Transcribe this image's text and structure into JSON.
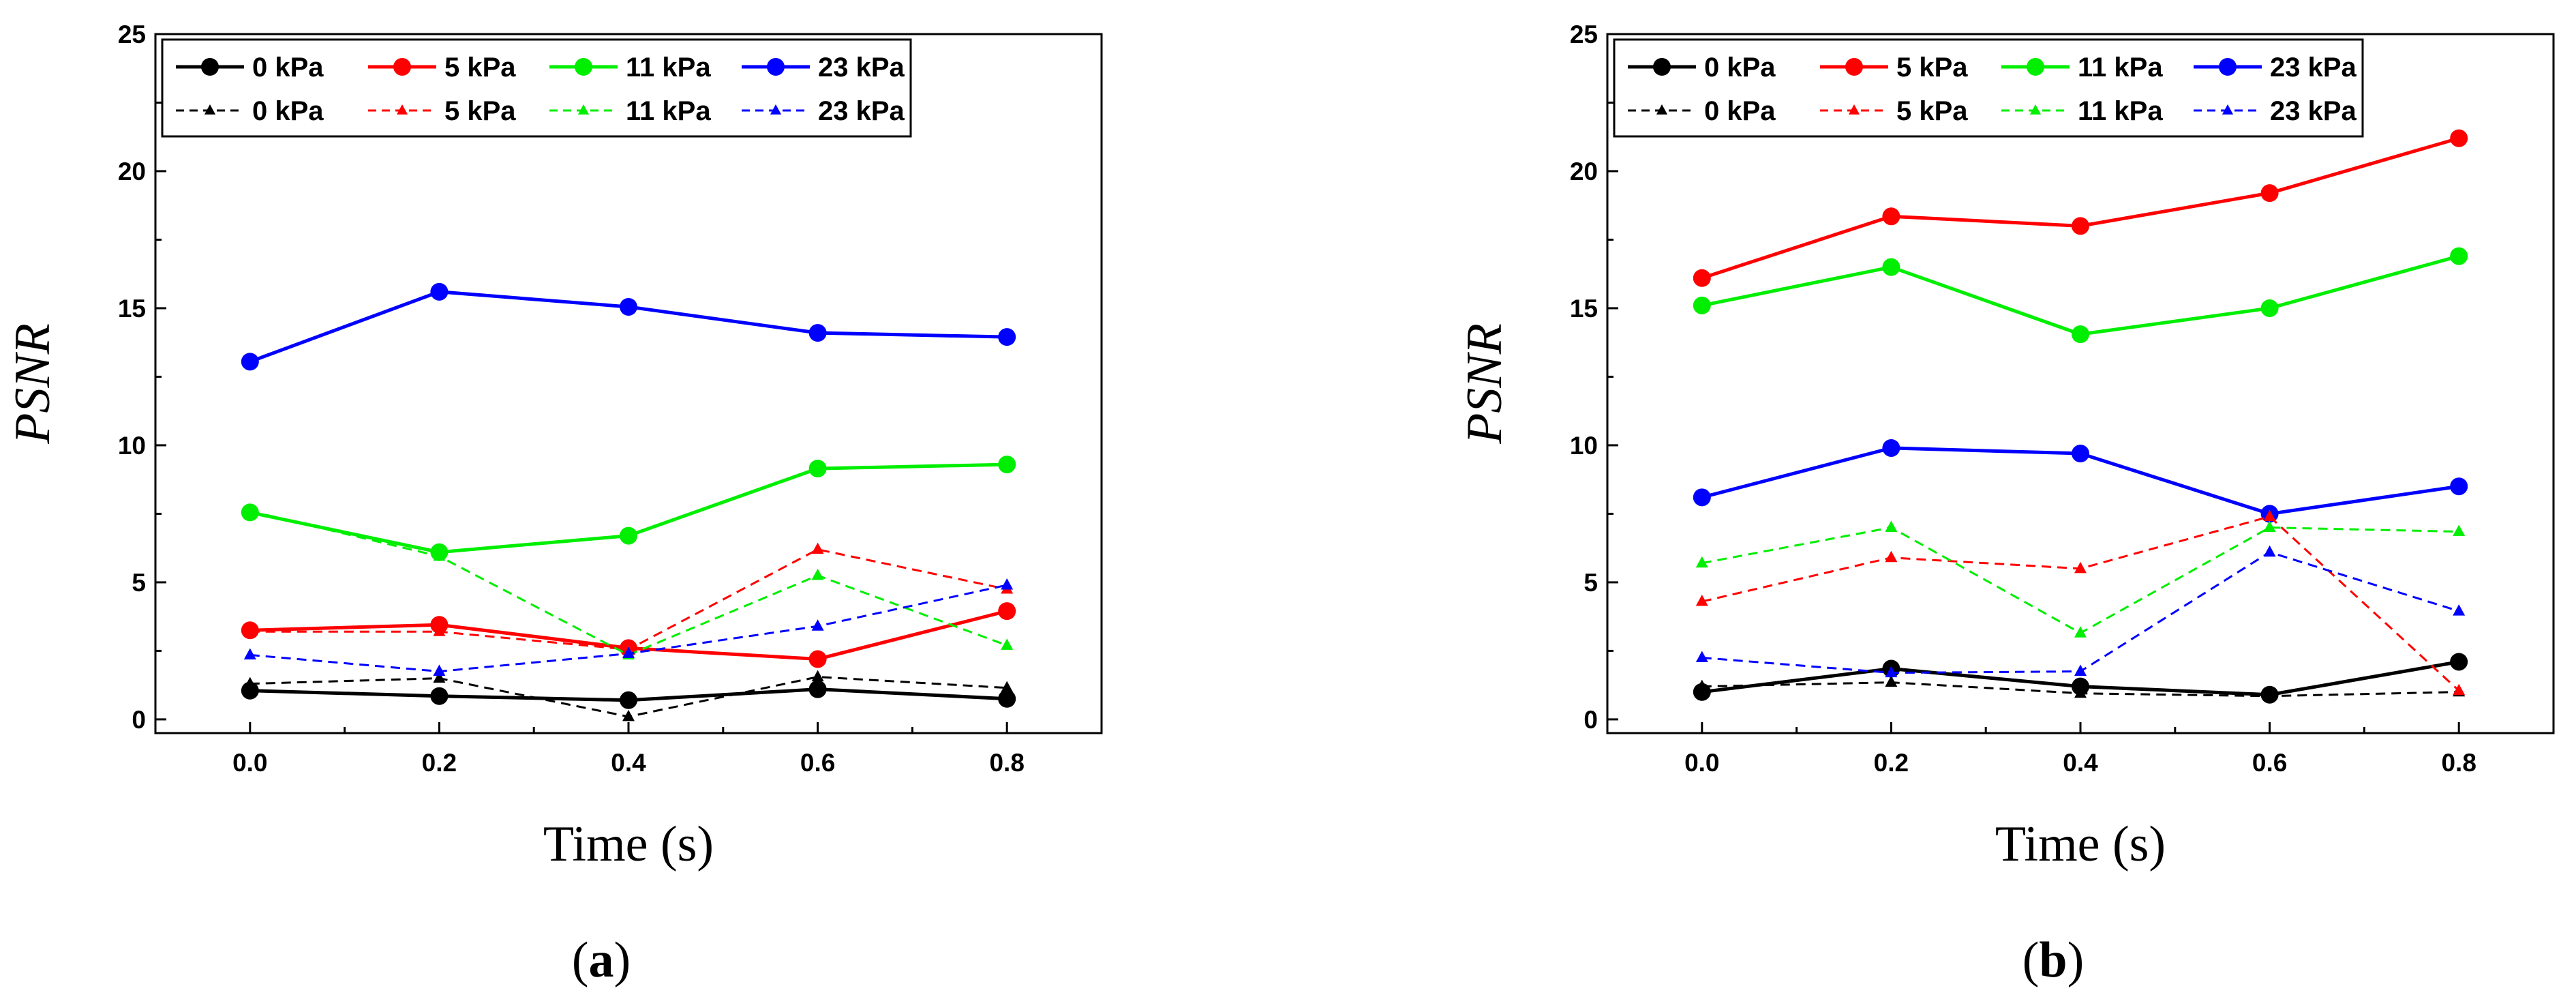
{
  "chart_data": [
    {
      "type": "line",
      "panel_label": {
        "open": "(",
        "letter": "a",
        "close": ")"
      },
      "xlabel": "Time (s)",
      "ylabel": "PSNR",
      "xlim": [
        -0.1,
        0.9
      ],
      "ylim": [
        -0.5,
        25
      ],
      "xticks": [
        0.0,
        0.2,
        0.4,
        0.6,
        0.8
      ],
      "xtick_labels": [
        "0.0",
        "0.2",
        "0.4",
        "0.6",
        "0.8"
      ],
      "yticks": [
        0,
        5,
        10,
        15,
        20,
        25
      ],
      "ytick_labels": [
        "0",
        "5",
        "10",
        "15",
        "20",
        "25"
      ],
      "legend_position": "top-left",
      "x": [
        0.0,
        0.2,
        0.4,
        0.6,
        0.8
      ],
      "series": [
        {
          "name": "0 kPa",
          "style": "solid",
          "color": "#000000",
          "values": [
            1.05,
            0.85,
            0.7,
            1.1,
            0.75
          ]
        },
        {
          "name": "5 kPa",
          "style": "solid",
          "color": "#ff0000",
          "values": [
            3.25,
            3.45,
            2.6,
            2.2,
            3.95
          ]
        },
        {
          "name": "11 kPa",
          "style": "solid",
          "color": "#00ee00",
          "values": [
            7.55,
            6.1,
            6.7,
            9.15,
            9.3
          ]
        },
        {
          "name": "23 kPa",
          "style": "solid",
          "color": "#0000ff",
          "values": [
            13.05,
            15.6,
            15.05,
            14.1,
            13.95
          ]
        },
        {
          "name": "0 kPa",
          "style": "dashed",
          "color": "#000000",
          "values": [
            1.3,
            1.5,
            0.1,
            1.55,
            1.15
          ]
        },
        {
          "name": "5 kPa",
          "style": "dashed",
          "color": "#ff0000",
          "values": [
            3.2,
            3.2,
            2.55,
            6.2,
            4.75
          ]
        },
        {
          "name": "11 kPa",
          "style": "dashed",
          "color": "#00ee00",
          "values": [
            7.6,
            5.95,
            2.35,
            5.25,
            2.7
          ]
        },
        {
          "name": "23 kPa",
          "style": "dashed",
          "color": "#0000ff",
          "values": [
            2.35,
            1.75,
            2.4,
            3.4,
            4.9
          ]
        }
      ]
    },
    {
      "type": "line",
      "panel_label": {
        "open": "(",
        "letter": "b",
        "close": ")"
      },
      "xlabel": "Time (s)",
      "ylabel": "PSNR",
      "xlim": [
        -0.1,
        0.9
      ],
      "ylim": [
        -0.5,
        25
      ],
      "xticks": [
        0.0,
        0.2,
        0.4,
        0.6,
        0.8
      ],
      "xtick_labels": [
        "0.0",
        "0.2",
        "0.4",
        "0.6",
        "0.8"
      ],
      "yticks": [
        0,
        5,
        10,
        15,
        20,
        25
      ],
      "ytick_labels": [
        "0",
        "5",
        "10",
        "15",
        "20",
        "25"
      ],
      "legend_position": "top-left",
      "x": [
        0.0,
        0.2,
        0.4,
        0.6,
        0.8
      ],
      "series": [
        {
          "name": "0 kPa",
          "style": "solid",
          "color": "#000000",
          "values": [
            1.0,
            1.85,
            1.2,
            0.9,
            2.1
          ]
        },
        {
          "name": "5 kPa",
          "style": "solid",
          "color": "#ff0000",
          "values": [
            16.1,
            18.35,
            18.0,
            19.2,
            21.2
          ]
        },
        {
          "name": "11 kPa",
          "style": "solid",
          "color": "#00ee00",
          "values": [
            15.1,
            16.5,
            14.05,
            15.0,
            16.9
          ]
        },
        {
          "name": "23 kPa",
          "style": "solid",
          "color": "#0000ff",
          "values": [
            8.1,
            9.9,
            9.7,
            7.5,
            8.5
          ]
        },
        {
          "name": "0 kPa",
          "style": "dashed",
          "color": "#000000",
          "values": [
            1.2,
            1.35,
            0.95,
            0.85,
            1.0
          ]
        },
        {
          "name": "5 kPa",
          "style": "dashed",
          "color": "#ff0000",
          "values": [
            4.3,
            5.9,
            5.5,
            7.4,
            1.05
          ]
        },
        {
          "name": "11 kPa",
          "style": "dashed",
          "color": "#00ee00",
          "values": [
            5.7,
            7.0,
            3.15,
            7.0,
            6.85
          ]
        },
        {
          "name": "23 kPa",
          "style": "dashed",
          "color": "#0000ff",
          "values": [
            2.25,
            1.7,
            1.75,
            6.1,
            3.95
          ]
        }
      ]
    }
  ]
}
